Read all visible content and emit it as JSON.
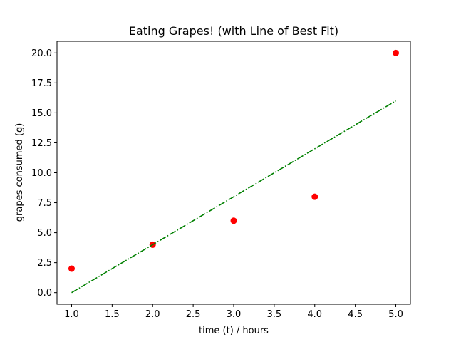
{
  "chart_data": {
    "type": "scatter",
    "title": "Eating Grapes! (with Line of Best Fit)",
    "xlabel": "time (t) / hours",
    "ylabel": "grapes consumed (g)",
    "xlim": [
      0.82,
      5.18
    ],
    "ylim": [
      -0.97,
      20.97
    ],
    "x_ticks": [
      1.0,
      1.5,
      2.0,
      2.5,
      3.0,
      3.5,
      4.0,
      4.5,
      5.0
    ],
    "x_tick_labels": [
      "1.0",
      "1.5",
      "2.0",
      "2.5",
      "3.0",
      "3.5",
      "4.0",
      "4.5",
      "5.0"
    ],
    "y_ticks": [
      0.0,
      2.5,
      5.0,
      7.5,
      10.0,
      12.5,
      15.0,
      17.5,
      20.0
    ],
    "y_tick_labels": [
      "0.0",
      "2.5",
      "5.0",
      "7.5",
      "10.0",
      "12.5",
      "15.0",
      "17.5",
      "20.0"
    ],
    "grid": false,
    "series": [
      {
        "kind": "scatter",
        "color": "#ff0000",
        "x": [
          1,
          2,
          3,
          4,
          5
        ],
        "y": [
          2,
          4,
          6,
          8,
          20
        ]
      },
      {
        "kind": "line",
        "style": "dash-dot",
        "color": "#008000",
        "x": [
          1,
          2,
          3,
          4,
          5
        ],
        "y": [
          0,
          4,
          8,
          12,
          16
        ]
      }
    ]
  }
}
